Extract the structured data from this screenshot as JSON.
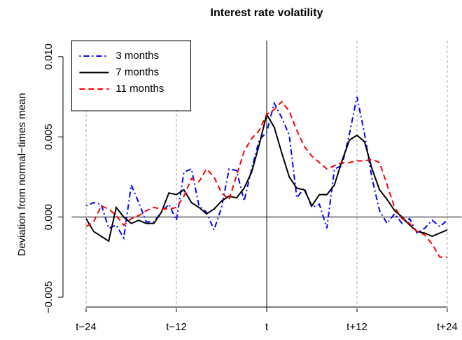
{
  "chart_data": {
    "type": "line",
    "title": "Interest rate volatility",
    "ylabel": "Deviation from normal−times mean",
    "x": [
      -24,
      -23,
      -22,
      -21,
      -20,
      -19,
      -18,
      -17,
      -16,
      -15,
      -14,
      -13,
      -12,
      -11,
      -10,
      -9,
      -8,
      -7,
      -6,
      -5,
      -4,
      -3,
      -2,
      -1,
      0,
      1,
      2,
      3,
      4,
      5,
      6,
      7,
      8,
      9,
      10,
      11,
      12,
      13,
      14,
      15,
      16,
      17,
      18,
      19,
      20,
      21,
      22,
      23,
      24
    ],
    "series": [
      {
        "name": "3 months",
        "color": "#0000ff",
        "dash": "dotdash",
        "values": [
          0.0007,
          0.0009,
          0.0008,
          -0.0007,
          -0.0005,
          -0.0013,
          0.002,
          0.0009,
          -0.0003,
          -0.0003,
          0.0003,
          0.0008,
          -0.0002,
          0.0028,
          0.003,
          0.0007,
          0.0003,
          -0.0008,
          0.0006,
          0.003,
          0.0029,
          0.001,
          0.003,
          0.0048,
          0.0053,
          0.0071,
          0.0062,
          0.0051,
          0.0012,
          0.0018,
          0.0006,
          0.0008,
          -0.0007,
          0.003,
          0.0032,
          0.0052,
          0.0075,
          0.0052,
          0.0024,
          0.0004,
          -0.0004,
          0.0002,
          -0.0004,
          -0.0001,
          -0.001,
          -0.0007,
          -0.0002,
          -0.0006,
          -0.0002
        ]
      },
      {
        "name": "7 months",
        "color": "#000000",
        "dash": "solid",
        "values": [
          -0.0001,
          -0.0009,
          -0.0012,
          -0.0015,
          0.0006,
          0.0,
          -0.0004,
          -0.0002,
          -0.0004,
          -0.0004,
          0.0003,
          0.0015,
          0.0014,
          0.0017,
          0.0009,
          0.0006,
          0.0002,
          0.0005,
          0.001,
          0.0013,
          0.0012,
          0.0018,
          0.0028,
          0.0045,
          0.0064,
          0.0056,
          0.004,
          0.0025,
          0.0018,
          0.0017,
          0.0007,
          0.0014,
          0.0014,
          0.002,
          0.0035,
          0.0048,
          0.0051,
          0.0047,
          0.003,
          0.0017,
          0.0011,
          0.0004,
          0.0,
          -0.0005,
          -0.0009,
          -0.001,
          -0.0012,
          -0.001,
          -0.0008
        ]
      },
      {
        "name": "11 months",
        "color": "#ff0000",
        "dash": "dashed",
        "values": [
          -0.0006,
          -0.0003,
          0.0007,
          0.0005,
          0.0001,
          -0.0005,
          -0.0001,
          0.0001,
          0.0004,
          0.0006,
          0.0005,
          0.0005,
          0.0006,
          0.0013,
          0.0024,
          0.0022,
          0.003,
          0.0025,
          0.0015,
          0.0011,
          0.0026,
          0.0041,
          0.0049,
          0.0054,
          0.0064,
          0.0067,
          0.0072,
          0.0066,
          0.0054,
          0.0044,
          0.0038,
          0.0034,
          0.003,
          0.0032,
          0.0034,
          0.0034,
          0.0035,
          0.0035,
          0.0036,
          0.0034,
          0.002,
          0.0006,
          -0.0001,
          -0.0004,
          -0.0009,
          -0.0011,
          -0.0017,
          -0.0025,
          -0.0025
        ]
      }
    ],
    "xlim": [
      -25.92,
      25.92
    ],
    "ylim": [
      -0.0057,
      0.011
    ],
    "xticks": [
      {
        "value": -24,
        "label": "t−24"
      },
      {
        "value": -12,
        "label": "t−12"
      },
      {
        "value": 0,
        "label": "t"
      },
      {
        "value": 12,
        "label": "t+12"
      },
      {
        "value": 24,
        "label": "t+24"
      }
    ],
    "yticks": [
      {
        "value": -0.005,
        "label": "−0.005"
      },
      {
        "value": 0,
        "label": "0.000"
      },
      {
        "value": 0.005,
        "label": "0.005"
      },
      {
        "value": 0.01,
        "label": "0.010"
      }
    ],
    "xgrid": true,
    "refline_x": 0,
    "refline_y": 0,
    "legend": "top-left"
  }
}
